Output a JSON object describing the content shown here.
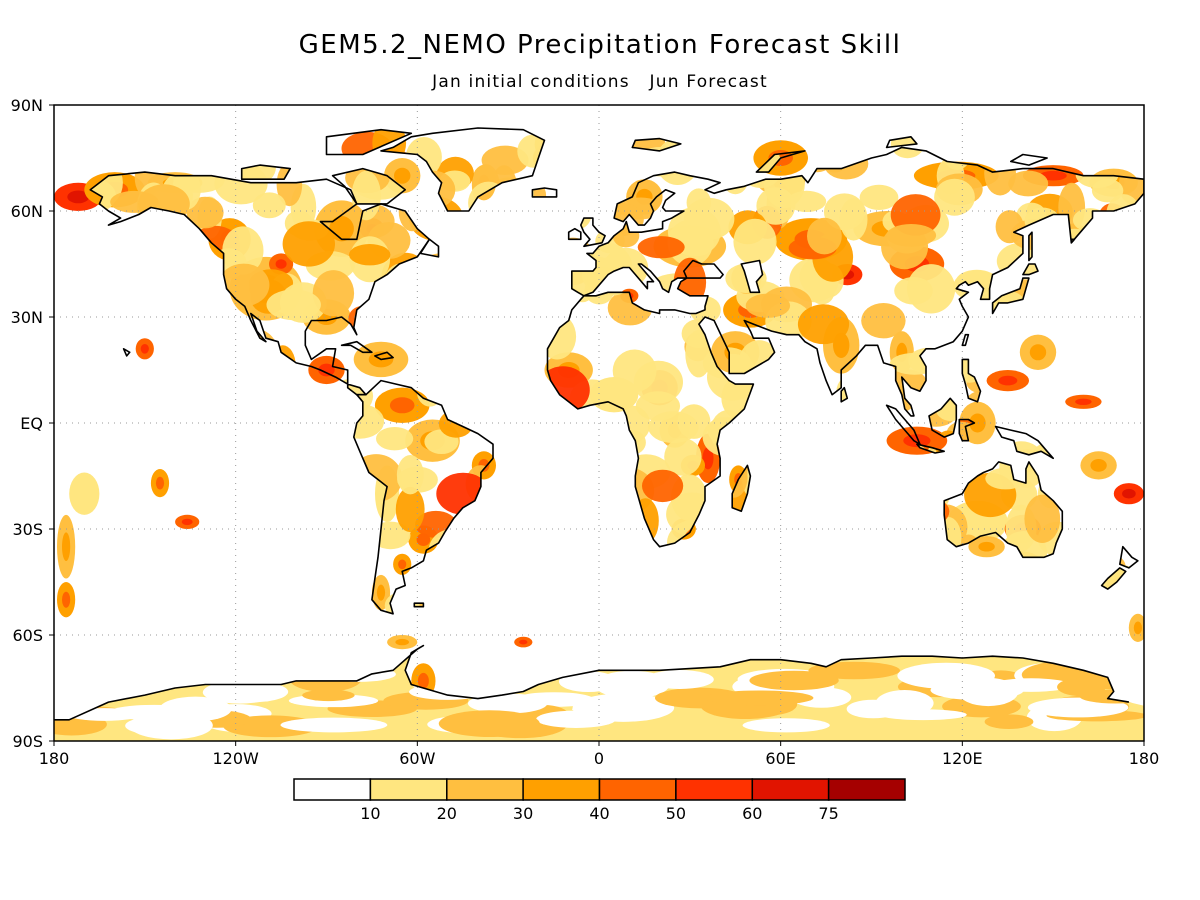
{
  "title": "GEM5.2_NEMO Precipitation Forecast Skill",
  "subtitle": "Jan initial conditions   Jun Forecast",
  "colors": {
    "palette": [
      "#ffffff",
      "#ffe680",
      "#ffbf40",
      "#ffa000",
      "#ff6400",
      "#ff3200",
      "#e11400",
      "#a50000"
    ],
    "coastline": "#000000",
    "grid": "#9a9a9a"
  },
  "chart_data": {
    "type": "heatmap",
    "projection": "equirectangular",
    "lon_range": [
      -180,
      180
    ],
    "lat_range": [
      -90,
      90
    ],
    "x_ticks": [
      {
        "lon": -180,
        "label": "180"
      },
      {
        "lon": -120,
        "label": "120W"
      },
      {
        "lon": -60,
        "label": "60W"
      },
      {
        "lon": 0,
        "label": "0"
      },
      {
        "lon": 60,
        "label": "60E"
      },
      {
        "lon": 120,
        "label": "120E"
      },
      {
        "lon": 180,
        "label": "180"
      }
    ],
    "y_ticks": [
      {
        "lat": 90,
        "label": "90N"
      },
      {
        "lat": 60,
        "label": "60N"
      },
      {
        "lat": 30,
        "label": "30N"
      },
      {
        "lat": 0,
        "label": "EQ"
      },
      {
        "lat": -30,
        "label": "30S"
      },
      {
        "lat": -60,
        "label": "60S"
      },
      {
        "lat": -90,
        "label": "90S"
      }
    ],
    "grid": true,
    "colorbar": {
      "levels": [
        10,
        20,
        30,
        40,
        50,
        60,
        75
      ],
      "labels": [
        "10",
        "20",
        "30",
        "40",
        "50",
        "60",
        "75"
      ]
    },
    "skill_regions": [
      {
        "lon": -172,
        "lat": 64,
        "rlon": 8,
        "rlat": 4,
        "level": 5
      },
      {
        "lon": -160,
        "lat": 66,
        "rlon": 10,
        "rlat": 5,
        "level": 3
      },
      {
        "lon": -140,
        "lat": 68,
        "rlon": 9,
        "rlat": 3,
        "level": 2
      },
      {
        "lon": -150,
        "lat": 21,
        "rlon": 3,
        "rlat": 3,
        "level": 4
      },
      {
        "lon": -170,
        "lat": -20,
        "rlon": 5,
        "rlat": 6,
        "level": 1
      },
      {
        "lon": -145,
        "lat": -17,
        "rlon": 3,
        "rlat": 4,
        "level": 3
      },
      {
        "lon": -136,
        "lat": -28,
        "rlon": 4,
        "rlat": 2,
        "level": 4
      },
      {
        "lon": -176,
        "lat": -35,
        "rlon": 3,
        "rlat": 9,
        "level": 2
      },
      {
        "lon": -176,
        "lat": -50,
        "rlon": 3,
        "rlat": 5,
        "level": 3
      },
      {
        "lon": -122,
        "lat": 52,
        "rlon": 7,
        "rlat": 6,
        "level": 3
      },
      {
        "lon": -110,
        "lat": 38,
        "rlon": 12,
        "rlat": 9,
        "level": 2
      },
      {
        "lon": -105,
        "lat": 45,
        "rlon": 4,
        "rlat": 3,
        "level": 4
      },
      {
        "lon": -90,
        "lat": 30,
        "rlon": 8,
        "rlat": 5,
        "level": 2
      },
      {
        "lon": -85,
        "lat": 55,
        "rlon": 9,
        "rlat": 8,
        "level": 2
      },
      {
        "lon": -75,
        "lat": 55,
        "rlon": 4,
        "rlat": 3,
        "level": 4
      },
      {
        "lon": -65,
        "lat": 70,
        "rlon": 6,
        "rlat": 5,
        "level": 2
      },
      {
        "lon": -38,
        "lat": 68,
        "rlon": 4,
        "rlat": 5,
        "level": 2
      },
      {
        "lon": -90,
        "lat": 15,
        "rlon": 6,
        "rlat": 4,
        "level": 4
      },
      {
        "lon": -72,
        "lat": 18,
        "rlon": 9,
        "rlat": 5,
        "level": 2
      },
      {
        "lon": -65,
        "lat": 5,
        "rlon": 9,
        "rlat": 5,
        "level": 3
      },
      {
        "lon": -55,
        "lat": -5,
        "rlon": 9,
        "rlat": 6,
        "level": 2
      },
      {
        "lon": -38,
        "lat": -12,
        "rlon": 4,
        "rlat": 4,
        "level": 3
      },
      {
        "lon": -70,
        "lat": -20,
        "rlon": 4,
        "rlat": 8,
        "level": 1
      },
      {
        "lon": -58,
        "lat": -33,
        "rlon": 5,
        "rlat": 4,
        "level": 3
      },
      {
        "lon": -72,
        "lat": -48,
        "rlon": 3,
        "rlat": 5,
        "level": 2
      },
      {
        "lon": -65,
        "lat": -40,
        "rlon": 3,
        "rlat": 3,
        "level": 3
      },
      {
        "lon": -58,
        "lat": -73,
        "rlon": 4,
        "rlat": 5,
        "level": 3
      },
      {
        "lon": -65,
        "lat": -62,
        "rlon": 5,
        "rlat": 2,
        "level": 2
      },
      {
        "lon": -25,
        "lat": -62,
        "rlon": 3,
        "rlat": 1.5,
        "level": 4
      },
      {
        "lon": -10,
        "lat": 15,
        "rlon": 8,
        "rlat": 5,
        "level": 2
      },
      {
        "lon": 5,
        "lat": 8,
        "rlon": 8,
        "rlat": 5,
        "level": 1
      },
      {
        "lon": 20,
        "lat": 10,
        "rlon": 6,
        "rlat": 5,
        "level": 4
      },
      {
        "lon": 25,
        "lat": -2,
        "rlon": 5,
        "rlat": 5,
        "level": 2
      },
      {
        "lon": 36,
        "lat": -10,
        "rlon": 4,
        "rlat": 7,
        "level": 4
      },
      {
        "lon": 31,
        "lat": -12,
        "rlon": 4,
        "rlat": 3,
        "level": 3
      },
      {
        "lon": 46,
        "lat": -16,
        "rlon": 3,
        "rlat": 4,
        "level": 3
      },
      {
        "lon": 28,
        "lat": -30,
        "rlon": 4,
        "rlat": 3,
        "level": 3
      },
      {
        "lon": 10,
        "lat": 36,
        "rlon": 3,
        "rlat": 2,
        "level": 4
      },
      {
        "lon": 45,
        "lat": 20,
        "rlon": 8,
        "rlat": 6,
        "level": 2
      },
      {
        "lon": 50,
        "lat": 32,
        "rlon": 9,
        "rlat": 5,
        "level": 3
      },
      {
        "lon": 30,
        "lat": 50,
        "rlon": 12,
        "rlat": 6,
        "level": 2
      },
      {
        "lon": 15,
        "lat": 64,
        "rlon": 6,
        "rlat": 5,
        "level": 2
      },
      {
        "lon": 60,
        "lat": 75,
        "rlon": 9,
        "rlat": 5,
        "level": 3
      },
      {
        "lon": 70,
        "lat": 52,
        "rlon": 12,
        "rlat": 6,
        "level": 3
      },
      {
        "lon": 82,
        "lat": 42,
        "rlon": 5,
        "rlat": 3,
        "level": 5
      },
      {
        "lon": 95,
        "lat": 55,
        "rlon": 11,
        "rlat": 5,
        "level": 2
      },
      {
        "lon": 105,
        "lat": 45,
        "rlon": 9,
        "rlat": 5,
        "level": 4
      },
      {
        "lon": 118,
        "lat": 70,
        "rlon": 14,
        "rlat": 4,
        "level": 3
      },
      {
        "lon": 150,
        "lat": 70,
        "rlon": 10,
        "rlat": 3,
        "level": 4
      },
      {
        "lon": 170,
        "lat": 68,
        "rlon": 8,
        "rlat": 4,
        "level": 2
      },
      {
        "lon": 80,
        "lat": 22,
        "rlon": 6,
        "rlat": 8,
        "level": 2
      },
      {
        "lon": 100,
        "lat": 20,
        "rlon": 4,
        "rlat": 6,
        "level": 2
      },
      {
        "lon": 105,
        "lat": -5,
        "rlon": 10,
        "rlat": 4,
        "level": 4
      },
      {
        "lon": 125,
        "lat": 0,
        "rlon": 6,
        "rlat": 6,
        "level": 2
      },
      {
        "lon": 135,
        "lat": 12,
        "rlon": 7,
        "rlat": 3,
        "level": 4
      },
      {
        "lon": 145,
        "lat": 20,
        "rlon": 6,
        "rlat": 5,
        "level": 2
      },
      {
        "lon": 160,
        "lat": 6,
        "rlon": 6,
        "rlat": 2,
        "level": 4
      },
      {
        "lon": 175,
        "lat": -20,
        "rlon": 5,
        "rlat": 3,
        "level": 5
      },
      {
        "lon": 165,
        "lat": -12,
        "rlon": 6,
        "rlat": 4,
        "level": 2
      },
      {
        "lon": 125,
        "lat": -28,
        "rlon": 10,
        "rlat": 6,
        "level": 1
      },
      {
        "lon": 140,
        "lat": -30,
        "rlon": 6,
        "rlat": 4,
        "level": 4
      },
      {
        "lon": 128,
        "lat": -35,
        "rlon": 6,
        "rlat": 3,
        "level": 2
      },
      {
        "lon": 178,
        "lat": -58,
        "rlon": 3,
        "rlat": 4,
        "level": 2
      },
      {
        "lon": 130,
        "lat": -73,
        "rlon": 12,
        "rlat": 4,
        "level": 2
      },
      {
        "lon": 75,
        "lat": -84,
        "rlon": 20,
        "rlat": 2,
        "level": 3
      }
    ]
  }
}
